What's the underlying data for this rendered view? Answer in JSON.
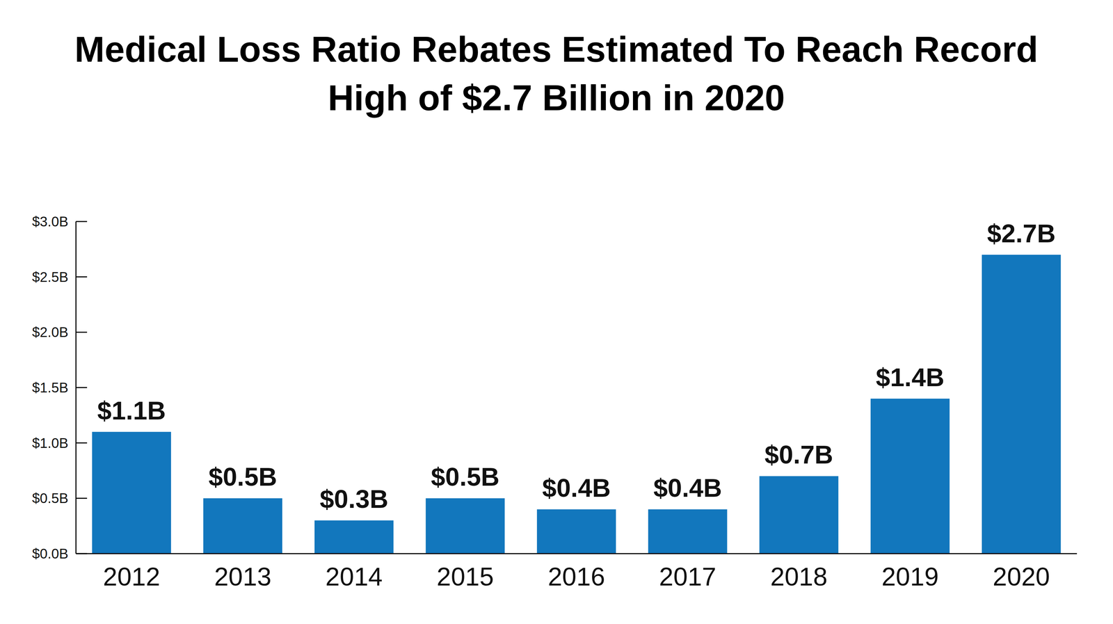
{
  "chart_data": {
    "type": "bar",
    "title": "Medical Loss Ratio Rebates Estimated To Reach Record High of $2.7 Billion in 2020",
    "categories": [
      "2012",
      "2013",
      "2014",
      "2015",
      "2016",
      "2017",
      "2018",
      "2019",
      "2020"
    ],
    "values": [
      1.1,
      0.5,
      0.3,
      0.5,
      0.4,
      0.4,
      0.7,
      1.4,
      2.7
    ],
    "value_labels": [
      "$1.1B",
      "$0.5B",
      "$0.3B",
      "$0.5B",
      "$0.4B",
      "$0.4B",
      "$0.7B",
      "$1.4B",
      "$2.7B"
    ],
    "color": "#1277bd",
    "ylim": [
      0,
      3
    ],
    "yticks": [
      {
        "value": 0,
        "label": "$0.0B"
      },
      {
        "value": 0.5,
        "label": "$0.5B"
      },
      {
        "value": 1,
        "label": "$1.0B"
      },
      {
        "value": 1.5,
        "label": "$1.5B"
      },
      {
        "value": 2,
        "label": "$2.0B"
      },
      {
        "value": 2.5,
        "label": "$2.5B"
      },
      {
        "value": 3,
        "label": "$3.0B"
      }
    ],
    "grid": false,
    "data_labels": true
  }
}
